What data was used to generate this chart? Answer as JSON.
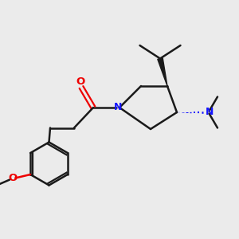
{
  "background_color": "#ebebeb",
  "bond_color": "#1a1a1a",
  "oxygen_color": "#ee0000",
  "nitrogen_color": "#1414ff",
  "figsize": [
    3.0,
    3.0
  ],
  "dpi": 100,
  "xlim": [
    0,
    10
  ],
  "ylim": [
    0,
    10
  ]
}
